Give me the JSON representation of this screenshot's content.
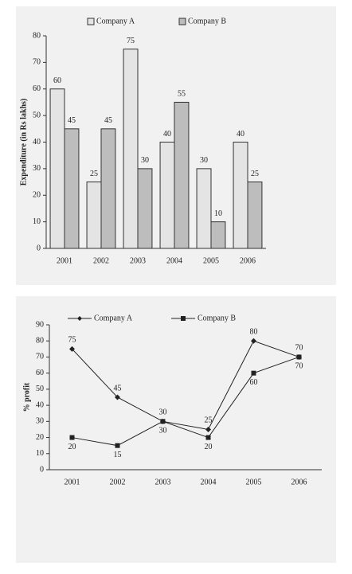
{
  "chart_data": [
    {
      "type": "bar",
      "ylabel": "Expenditure (in Rs lakhs)",
      "categories": [
        "2001",
        "2002",
        "2003",
        "2004",
        "2005",
        "2006"
      ],
      "series": [
        {
          "name": "Company A",
          "color": "#e4e4e4",
          "values": [
            60,
            25,
            75,
            40,
            30,
            40
          ]
        },
        {
          "name": "Company B",
          "color": "#bdbdbd",
          "values": [
            45,
            45,
            30,
            55,
            10,
            25
          ]
        }
      ],
      "ylim": [
        0,
        80
      ],
      "yticks": [
        0,
        10,
        20,
        30,
        40,
        50,
        60,
        70,
        80
      ]
    },
    {
      "type": "line",
      "ylabel": "% profit",
      "categories": [
        "2001",
        "2002",
        "2003",
        "2004",
        "2005",
        "2006"
      ],
      "series": [
        {
          "name": "Company A",
          "color": "#222222",
          "values": [
            75,
            45,
            30,
            25,
            80,
            70
          ]
        },
        {
          "name": "Company B",
          "color": "#222222",
          "values": [
            20,
            15,
            30,
            20,
            60,
            70
          ]
        }
      ],
      "ylim": [
        0,
        90
      ],
      "yticks": [
        0,
        10,
        20,
        30,
        40,
        50,
        60,
        70,
        80,
        90
      ]
    }
  ]
}
